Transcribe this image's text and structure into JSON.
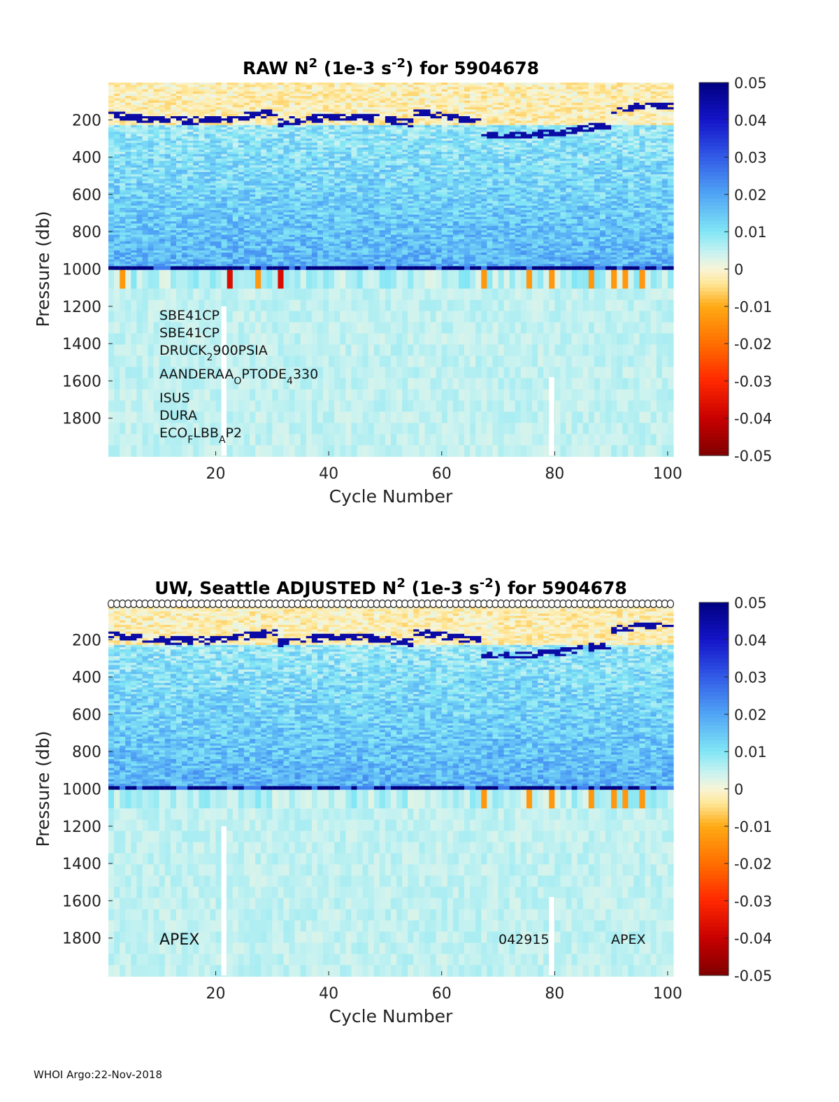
{
  "colorbar": {
    "ticks": [
      "0.05",
      "0.04",
      "0.03",
      "0.02",
      "0.01",
      "0",
      "-0.01",
      "-0.02",
      "-0.03",
      "-0.04",
      "-0.05"
    ],
    "colormap": [
      "#7f0000",
      "#ff0000",
      "#ff8000",
      "#ffd04a",
      "#fff4c8",
      "#d8f4f6",
      "#80ffff",
      "#4aa3ff",
      "#0000ff",
      "#00008f"
    ]
  },
  "footer": "WHOI Argo:22-Nov-2018",
  "chart_data": [
    {
      "type": "heatmap",
      "title_parts": [
        "RAW N",
        "2",
        " (1e-3 s",
        "-2",
        ") for 5904678"
      ],
      "xlabel": "Cycle Number",
      "ylabel": "Pressure (db)",
      "xlim": [
        1,
        101
      ],
      "ylim": [
        2000,
        0
      ],
      "x_ticks": [
        "20",
        "40",
        "60",
        "80",
        "100"
      ],
      "y_ticks": [
        "200",
        "400",
        "600",
        "800",
        "1000",
        "1200",
        "1400",
        "1600",
        "1800"
      ],
      "clim": [
        -0.05,
        0.05
      ],
      "sensors": [
        {
          "base": "SBE41CP",
          "sub": "",
          "rest": "",
          "sub2": "",
          "rest2": ""
        },
        {
          "base": "SBE41CP",
          "sub": "",
          "rest": "",
          "sub2": "",
          "rest2": ""
        },
        {
          "base": "DRUCK",
          "sub": "2",
          "rest": "900PSIA",
          "sub2": "",
          "rest2": ""
        },
        {
          "base": "AANDERAA",
          "sub": "O",
          "rest": "PTODE",
          "sub2": "4",
          "rest2": "330"
        },
        {
          "base": "ISUS",
          "sub": "",
          "rest": "",
          "sub2": "",
          "rest2": ""
        },
        {
          "base": "DURA",
          "sub": "",
          "rest": "",
          "sub2": "",
          "rest2": ""
        },
        {
          "base": "ECO",
          "sub": "F",
          "rest": "LBB",
          "sub2": "A",
          "rest2": "P2"
        }
      ],
      "annotations": [],
      "negative_cycles_near_1000db": [
        3,
        22,
        27,
        31,
        67,
        75,
        79,
        86,
        90,
        92,
        95
      ]
    },
    {
      "type": "heatmap",
      "title_parts": [
        "UW, Seattle  ADJUSTED N",
        "2",
        " (1e-3 s",
        "-2",
        ") for 5904678"
      ],
      "xlabel": "Cycle Number",
      "ylabel": "Pressure (db)",
      "xlim": [
        1,
        101
      ],
      "ylim": [
        2000,
        0
      ],
      "x_ticks": [
        "20",
        "40",
        "60",
        "80",
        "100"
      ],
      "y_ticks": [
        "200",
        "400",
        "600",
        "800",
        "1000",
        "1200",
        "1400",
        "1600",
        "1800"
      ],
      "clim": [
        -0.05,
        0.05
      ],
      "sensors": [],
      "annotations": [
        "APEX",
        "042915",
        "APEX"
      ],
      "negative_cycles_near_1000db": [
        67,
        75,
        79,
        86,
        90,
        92,
        95
      ],
      "qc_markers": "circles across top, one per cycle"
    }
  ]
}
